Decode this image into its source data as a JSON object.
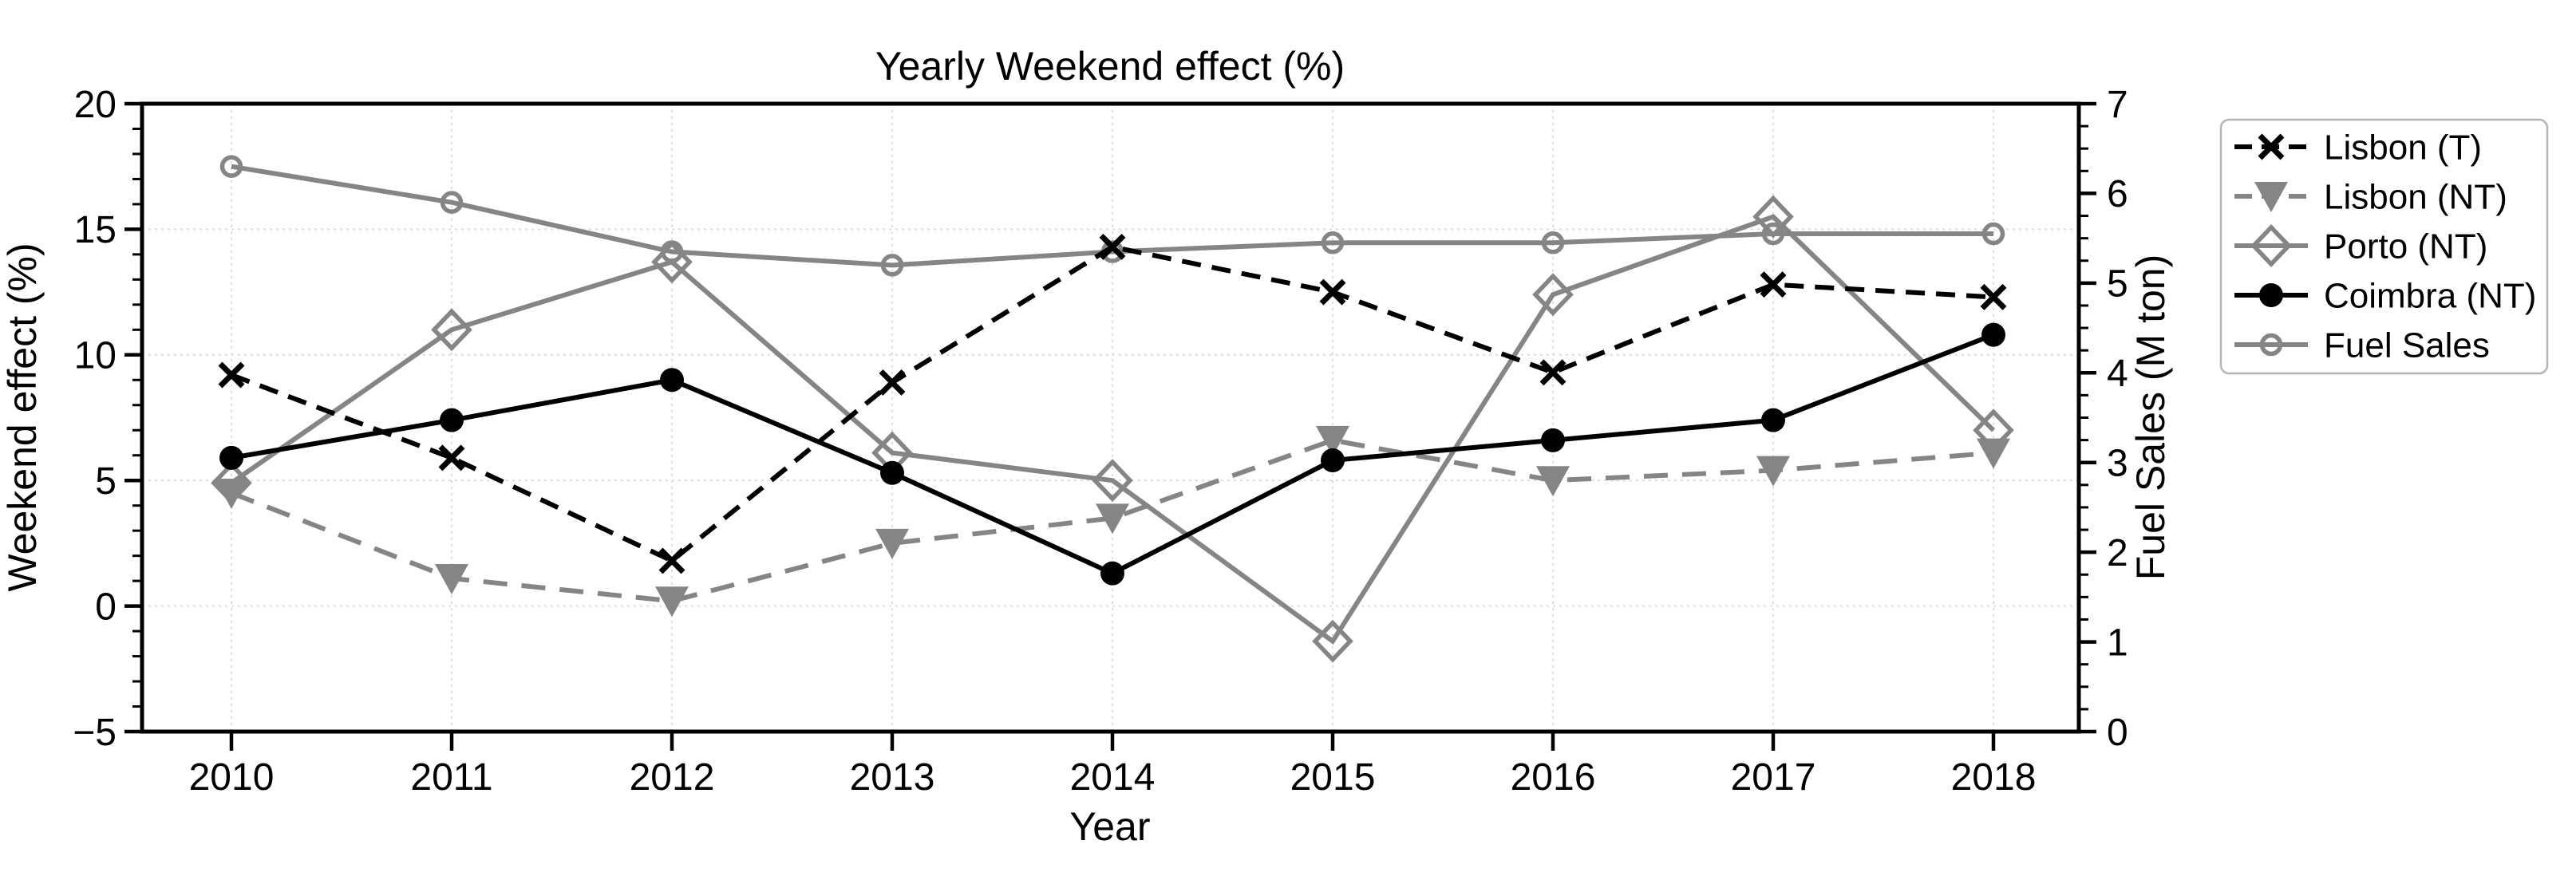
{
  "chart_data": {
    "type": "line",
    "title": "Yearly Weekend effect (%)",
    "xlabel": "Year",
    "ylabel_left": "Weekend effect (%)",
    "ylabel_right": "Fuel Sales (M ton)",
    "categories": [
      2010,
      2011,
      2012,
      2013,
      2014,
      2015,
      2016,
      2017,
      2018
    ],
    "ylim_left": [
      -5,
      20
    ],
    "ylim_right": [
      0,
      7
    ],
    "y_left_ticks": [
      -5,
      0,
      5,
      10,
      15,
      20
    ],
    "y_left_minor_step": 1,
    "y_right_ticks": [
      0,
      1,
      2,
      3,
      4,
      5,
      6,
      7
    ],
    "y_right_minor_step": 0.25,
    "grid": true,
    "legend_position": "outside-upper-right",
    "colors": {
      "black": "#000000",
      "gray": "#858585",
      "grid": "#dedede",
      "legend_border": "#b5b5b5",
      "background": "#ffffff"
    },
    "series": [
      {
        "name": "Lisbon (T)",
        "axis": "left",
        "color": "black",
        "line": "dashed",
        "marker": "x",
        "values": [
          9.2,
          5.9,
          1.8,
          8.9,
          14.3,
          12.5,
          9.3,
          12.8,
          12.3
        ]
      },
      {
        "name": "Lisbon (NT)",
        "axis": "left",
        "color": "gray",
        "line": "dashed",
        "marker": "triangle-down",
        "values": [
          4.5,
          1.1,
          0.2,
          2.5,
          3.5,
          6.6,
          5.0,
          5.4,
          6.1
        ]
      },
      {
        "name": "Porto (NT)",
        "axis": "left",
        "color": "gray",
        "line": "solid",
        "marker": "diamond-open",
        "values": [
          4.9,
          11.0,
          13.7,
          6.1,
          5.0,
          -1.4,
          12.4,
          15.5,
          7.0
        ]
      },
      {
        "name": "Coimbra (NT)",
        "axis": "left",
        "color": "black",
        "line": "solid",
        "marker": "circle-filled",
        "values": [
          5.9,
          7.4,
          9.0,
          5.3,
          1.3,
          5.8,
          6.6,
          7.4,
          10.8
        ]
      },
      {
        "name": "Fuel Sales",
        "axis": "right",
        "color": "gray",
        "line": "solid",
        "marker": "circle-open",
        "values": [
          6.3,
          5.9,
          5.35,
          5.2,
          5.35,
          5.45,
          5.45,
          5.55,
          5.55
        ]
      }
    ]
  }
}
